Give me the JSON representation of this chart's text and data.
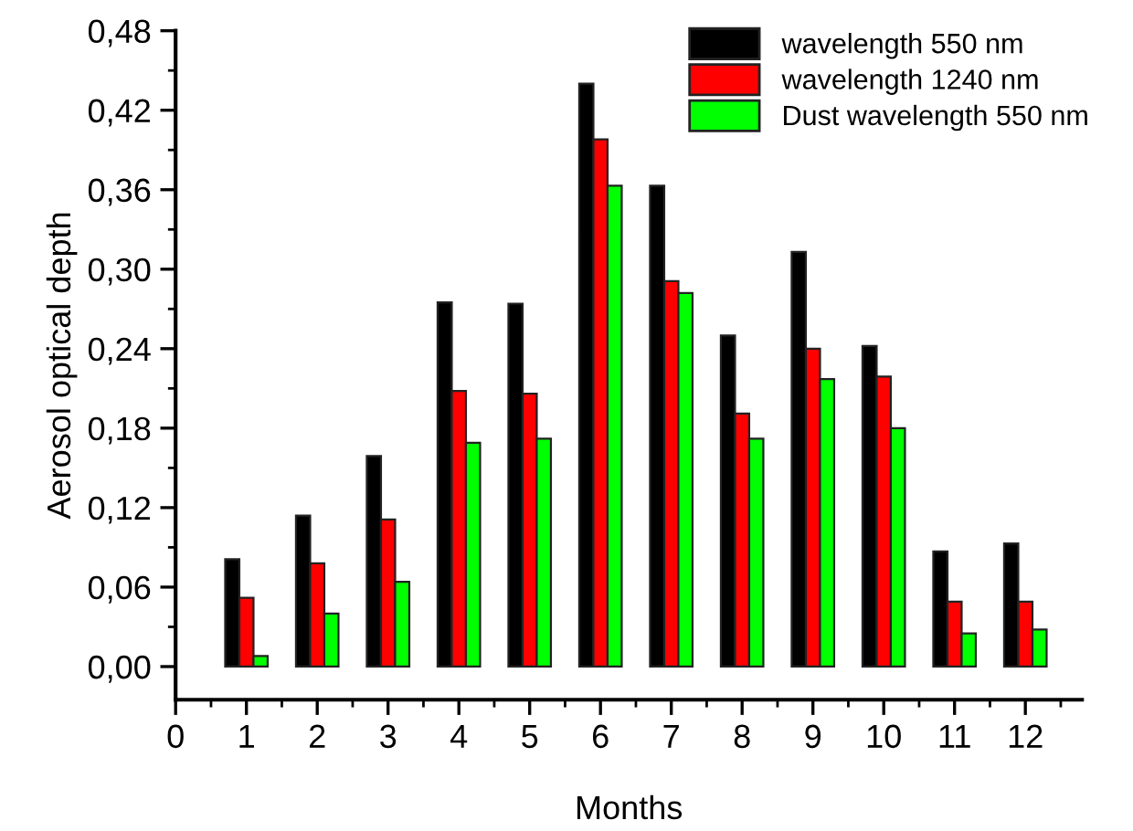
{
  "chart_data": {
    "type": "bar",
    "xlabel": "Months",
    "ylabel": "Aerosol optical depth",
    "x": [
      1,
      2,
      3,
      4,
      5,
      6,
      7,
      8,
      9,
      10,
      11,
      12
    ],
    "series": [
      {
        "name": "wavelength 550 nm",
        "color": "#000000",
        "values": [
          0.081,
          0.114,
          0.159,
          0.275,
          0.274,
          0.44,
          0.363,
          0.25,
          0.313,
          0.242,
          0.087,
          0.093
        ]
      },
      {
        "name": "wavelength 1240 nm",
        "color": "#ff0000",
        "values": [
          0.052,
          0.078,
          0.111,
          0.208,
          0.206,
          0.398,
          0.291,
          0.191,
          0.24,
          0.219,
          0.049,
          0.049
        ]
      },
      {
        "name": "Dust wavelength 550 nm",
        "color": "#00ff00",
        "values": [
          0.008,
          0.04,
          0.064,
          0.169,
          0.172,
          0.363,
          0.282,
          0.172,
          0.217,
          0.18,
          0.025,
          0.028
        ]
      }
    ],
    "xlim": [
      0,
      12.8
    ],
    "xticks": [
      0,
      1,
      2,
      3,
      4,
      5,
      6,
      7,
      8,
      9,
      10,
      11,
      12
    ],
    "ylim": [
      -0.025,
      0.48
    ],
    "yticks": [
      {
        "value": 0,
        "label": "0,00"
      },
      {
        "value": 0.06,
        "label": "0,06"
      },
      {
        "value": 0.12,
        "label": "0,12"
      },
      {
        "value": 0.18,
        "label": "0,18"
      },
      {
        "value": 0.24,
        "label": "0,24"
      },
      {
        "value": 0.3,
        "label": "0,30"
      },
      {
        "value": 0.36,
        "label": "0,36"
      },
      {
        "value": 0.42,
        "label": "0,42"
      },
      {
        "value": 0.48,
        "label": "0,48"
      }
    ],
    "grid": false,
    "legend": "top right"
  }
}
